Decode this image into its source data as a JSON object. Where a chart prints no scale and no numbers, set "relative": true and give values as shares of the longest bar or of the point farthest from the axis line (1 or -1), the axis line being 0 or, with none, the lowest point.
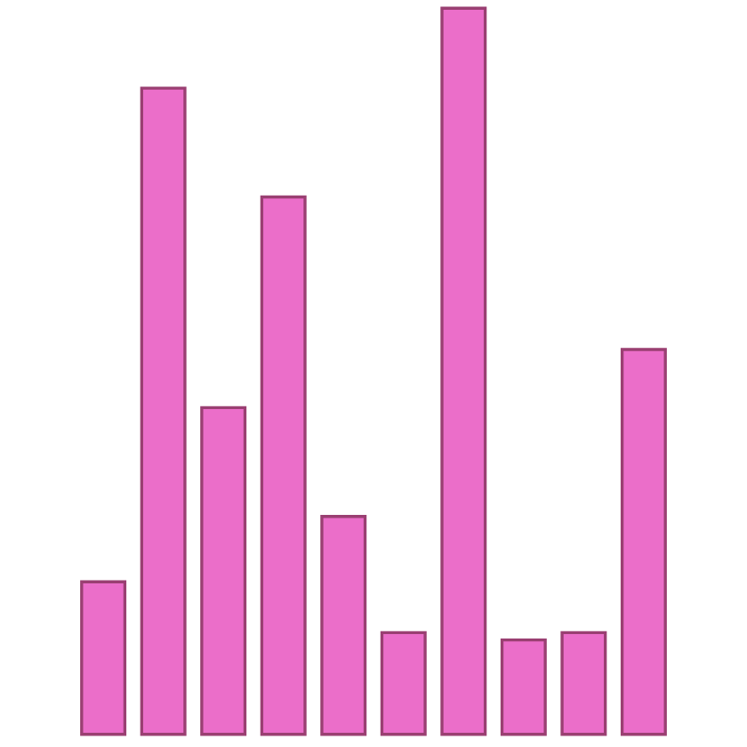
{
  "chart_data": {
    "type": "bar",
    "relative": true,
    "categories": [
      null,
      null,
      null,
      null,
      null,
      null,
      null,
      null,
      null,
      null
    ],
    "values": [
      0.21,
      0.89,
      0.45,
      0.74,
      0.3,
      0.14,
      1.0,
      0.13,
      0.14,
      0.53
    ],
    "color": "#eb6ec9"
  }
}
